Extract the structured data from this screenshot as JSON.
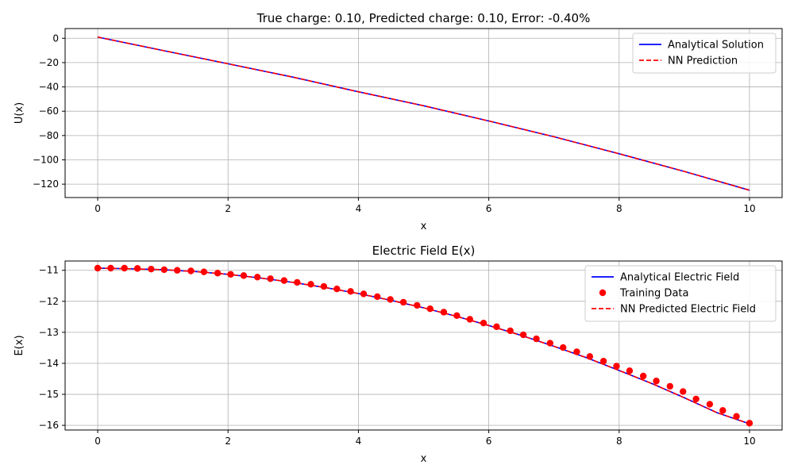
{
  "chart_data": [
    {
      "type": "line",
      "title": "True charge: 0.10, Predicted charge: 0.10, Error: -0.40%",
      "xlabel": "x",
      "ylabel": "U(x)",
      "xlim": [
        -0.5,
        10.5
      ],
      "ylim": [
        -131,
        8
      ],
      "xticks": [
        0,
        2,
        4,
        6,
        8,
        10
      ],
      "yticks": [
        0,
        -20,
        -40,
        -60,
        -80,
        -100,
        -120
      ],
      "grid": true,
      "legend_position": "top-right",
      "series": [
        {
          "name": "Analytical Solution",
          "style": "solid",
          "color": "#0000ff",
          "x": [
            0,
            1,
            2,
            3,
            4,
            5,
            6,
            7,
            8,
            9,
            10
          ],
          "y": [
            1,
            -10,
            -21,
            -32,
            -44,
            -55.5,
            -68,
            -81,
            -95,
            -109.5,
            -125
          ]
        },
        {
          "name": "NN Prediction",
          "style": "dashed",
          "color": "#ff0000",
          "x": [
            0,
            1,
            2,
            3,
            4,
            5,
            6,
            7,
            8,
            9,
            10
          ],
          "y": [
            1,
            -10,
            -21,
            -32,
            -44,
            -55.5,
            -68,
            -81,
            -95,
            -109.5,
            -125
          ]
        }
      ]
    },
    {
      "type": "line",
      "title": "Electric Field E(x)",
      "xlabel": "x",
      "ylabel": "E(x)",
      "xlim": [
        -0.5,
        10.5
      ],
      "ylim": [
        -16.15,
        -10.7
      ],
      "xticks": [
        0,
        2,
        4,
        6,
        8,
        10
      ],
      "yticks": [
        -11,
        -12,
        -13,
        -14,
        -15,
        -16
      ],
      "grid": true,
      "legend_position": "top-right",
      "series": [
        {
          "name": "Analytical Electric Field",
          "style": "solid",
          "color": "#0000ff",
          "x": [
            0,
            0.5,
            1,
            1.5,
            2,
            2.5,
            3,
            3.5,
            4,
            4.5,
            5,
            5.5,
            6,
            6.5,
            7,
            7.5,
            8,
            8.5,
            9,
            9.5,
            10
          ],
          "y": [
            -10.93,
            -10.95,
            -10.98,
            -11.04,
            -11.13,
            -11.25,
            -11.39,
            -11.56,
            -11.75,
            -11.97,
            -12.21,
            -12.48,
            -12.78,
            -13.1,
            -13.45,
            -13.82,
            -14.23,
            -14.65,
            -15.11,
            -15.59,
            -15.95
          ]
        },
        {
          "name": "Training Data",
          "style": "scatter",
          "color": "#ff0000",
          "x": [
            0,
            0.2,
            0.41,
            0.61,
            0.82,
            1.02,
            1.22,
            1.43,
            1.63,
            1.84,
            2.04,
            2.24,
            2.45,
            2.65,
            2.86,
            3.06,
            3.27,
            3.47,
            3.67,
            3.88,
            4.08,
            4.29,
            4.49,
            4.69,
            4.9,
            5.1,
            5.31,
            5.51,
            5.71,
            5.92,
            6.12,
            6.33,
            6.53,
            6.73,
            6.94,
            7.14,
            7.35,
            7.55,
            7.76,
            7.96,
            8.16,
            8.37,
            8.57,
            8.78,
            8.98,
            9.18,
            9.39,
            9.59,
            9.8,
            10
          ],
          "y": [
            -10.93,
            -10.93,
            -10.93,
            -10.94,
            -10.96,
            -10.98,
            -11.0,
            -11.02,
            -11.05,
            -11.09,
            -11.13,
            -11.17,
            -11.22,
            -11.27,
            -11.33,
            -11.39,
            -11.45,
            -11.52,
            -11.6,
            -11.68,
            -11.76,
            -11.85,
            -11.94,
            -12.03,
            -12.13,
            -12.24,
            -12.35,
            -12.46,
            -12.58,
            -12.7,
            -12.82,
            -12.95,
            -13.08,
            -13.21,
            -13.35,
            -13.49,
            -13.63,
            -13.78,
            -13.93,
            -14.09,
            -14.24,
            -14.41,
            -14.57,
            -14.74,
            -14.91,
            -15.15,
            -15.32,
            -15.52,
            -15.71,
            -15.93
          ]
        },
        {
          "name": "NN Predicted Electric Field",
          "style": "dashed",
          "color": "#ff0000",
          "x": [
            0,
            0.5,
            1,
            1.5,
            2,
            2.5,
            3,
            3.5,
            4,
            4.5,
            5,
            5.5,
            6,
            6.5,
            7,
            7.5,
            8,
            8.5,
            9,
            9.5,
            10
          ],
          "y": [
            -10.93,
            -10.95,
            -10.98,
            -11.04,
            -11.13,
            -11.25,
            -11.39,
            -11.56,
            -11.75,
            -11.97,
            -12.21,
            -12.48,
            -12.78,
            -13.1,
            -13.45,
            -13.82,
            -14.23,
            -14.65,
            -15.11,
            -15.59,
            -15.95
          ]
        }
      ]
    }
  ]
}
